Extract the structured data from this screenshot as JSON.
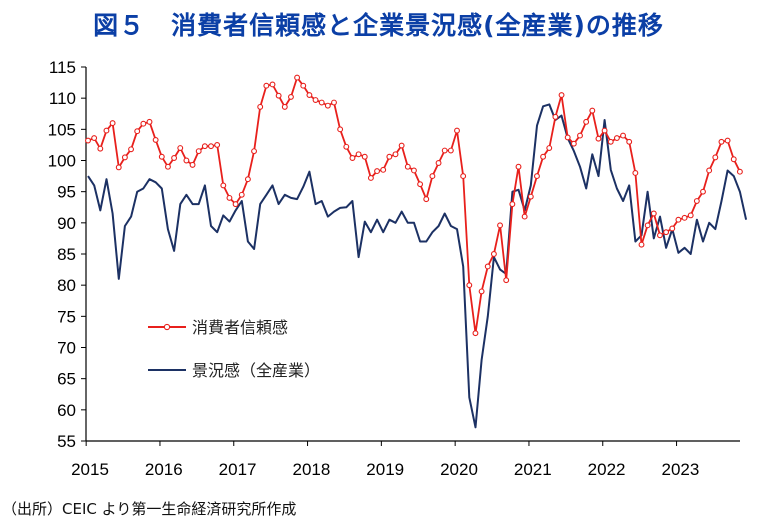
{
  "title": "図５　消費者信頼感と企業景況感(全産業)の推移",
  "source": "（出所）CEIC より第一生命経済研究所作成",
  "colors": {
    "title": "#0b3fa6",
    "consumer": "#e8201c",
    "business": "#1c3164",
    "marker_fill": "#ffffff"
  },
  "chart_data": {
    "type": "line",
    "title": "図５　消費者信頼感と企業景況感(全産業)の推移",
    "xlabel": "",
    "ylabel": "",
    "ylim": [
      55,
      115
    ],
    "yticks": [
      "55",
      "60",
      "65",
      "70",
      "75",
      "80",
      "85",
      "90",
      "95",
      "100",
      "105",
      "110",
      "115"
    ],
    "xticks": [
      "2015",
      "2016",
      "2017",
      "2018",
      "2019",
      "2020",
      "2021",
      "2022",
      "2023"
    ],
    "x_start": "2015-01",
    "x_step": "month",
    "legend_position": "lower-left",
    "grid": false,
    "series": [
      {
        "name": "消費者信頼感",
        "marker": "circle",
        "values": [
          103.2,
          103.6,
          101.9,
          104.8,
          106.0,
          98.9,
          100.5,
          101.8,
          104.7,
          105.9,
          106.2,
          103.3,
          100.6,
          99.0,
          100.4,
          102.0,
          100.0,
          99.3,
          101.5,
          102.3,
          102.3,
          102.5,
          96.0,
          94.0,
          93.0,
          94.5,
          97.0,
          101.5,
          108.6,
          112.0,
          112.2,
          110.4,
          108.6,
          110.2,
          113.3,
          112.0,
          110.5,
          109.7,
          109.3,
          108.8,
          109.3,
          105.0,
          102.2,
          100.4,
          101.0,
          100.6,
          97.2,
          98.3,
          98.5,
          100.6,
          101.0,
          102.4,
          99.0,
          98.4,
          96.2,
          93.8,
          97.5,
          99.6,
          101.6,
          101.6,
          104.8,
          97.5,
          80.0,
          72.3,
          79.0,
          83.0,
          85.0,
          89.6,
          80.8,
          93.0,
          99.0,
          91.0,
          94.2,
          97.5,
          100.6,
          102.0,
          107.0,
          110.5,
          103.7,
          102.7,
          104.0,
          106.2,
          108.0,
          103.5,
          104.8,
          103.0,
          103.6,
          104.0,
          103.0,
          98.0,
          86.5,
          89.6,
          91.5,
          88.0,
          88.5,
          89.1,
          90.5,
          90.8,
          91.2,
          93.5,
          95.0,
          98.4,
          100.5,
          103.0,
          103.2,
          100.2,
          98.2
        ]
      },
      {
        "name": "景況感（全産業）",
        "marker": "none",
        "values": [
          97.5,
          96.0,
          92.0,
          97.0,
          91.5,
          81.0,
          89.5,
          91.0,
          95.0,
          95.5,
          97.0,
          96.5,
          95.5,
          89.0,
          85.5,
          93.0,
          94.5,
          93.0,
          93.0,
          96.0,
          89.5,
          88.5,
          91.2,
          90.2,
          92.0,
          93.5,
          87.0,
          85.8,
          93.0,
          94.5,
          96.0,
          93.0,
          94.5,
          94.0,
          93.8,
          95.8,
          98.2,
          93.0,
          93.5,
          91.0,
          91.8,
          92.4,
          92.5,
          93.5,
          84.5,
          90.2,
          88.5,
          90.5,
          88.5,
          90.5,
          90.0,
          91.8,
          90.0,
          90.0,
          87.0,
          87.0,
          88.5,
          89.5,
          91.5,
          89.5,
          89.0,
          83.0,
          62.0,
          57.2,
          68.0,
          75.0,
          84.5,
          82.5,
          81.8,
          95.0,
          95.3,
          92.0,
          96.0,
          105.6,
          108.7,
          109.0,
          106.5,
          107.2,
          103.6,
          101.5,
          99.0,
          95.5,
          101.0,
          97.5,
          106.5,
          98.5,
          95.5,
          93.5,
          96.0,
          87.0,
          88.0,
          95.0,
          87.5,
          91.0,
          86.0,
          89.0,
          85.2,
          86.0,
          85.0,
          90.5,
          87.0,
          90.0,
          89.0,
          93.5,
          98.4,
          97.5,
          95.0,
          90.5
        ]
      }
    ]
  }
}
